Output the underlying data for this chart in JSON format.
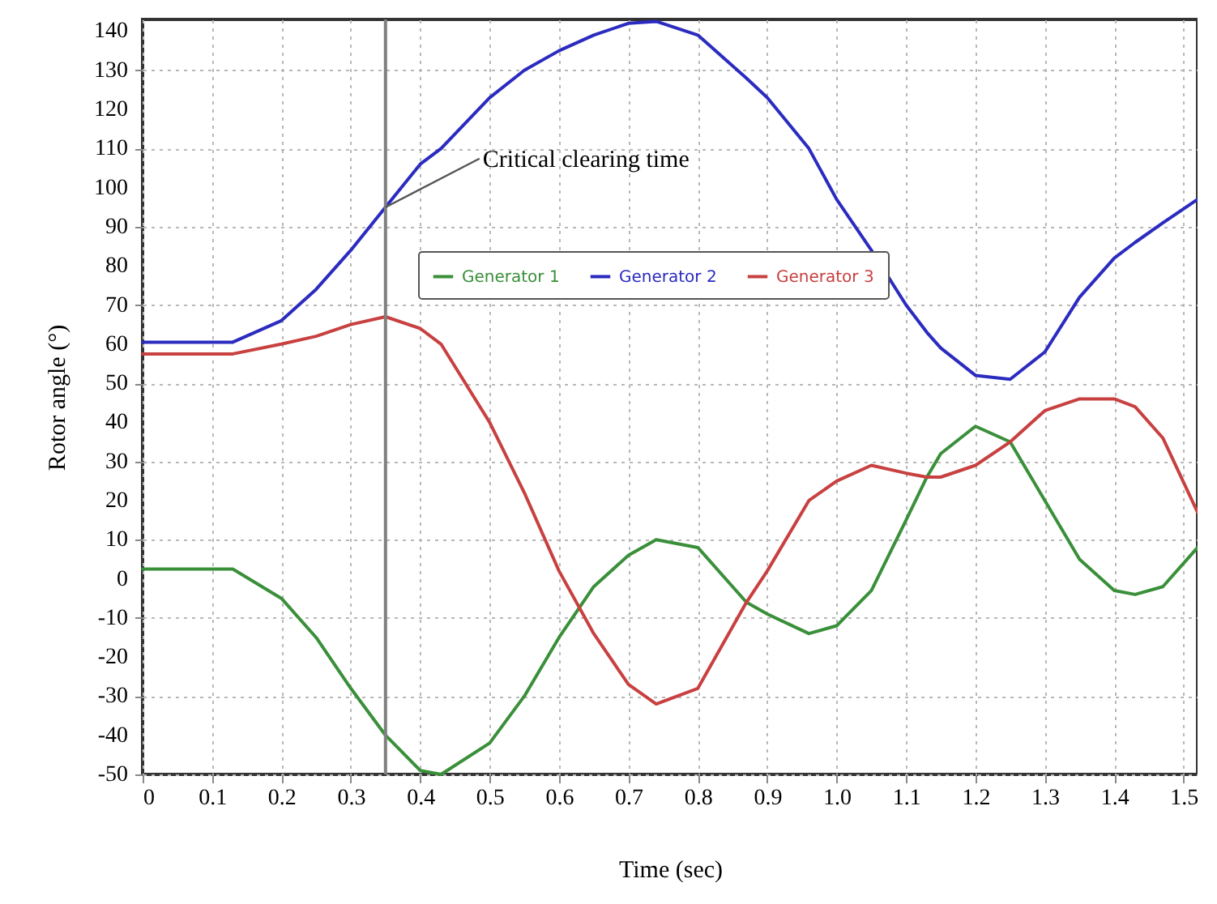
{
  "chart_data": {
    "type": "line",
    "xlabel": "Time (sec)",
    "ylabel": "Rotor angle (°)",
    "xlim": [
      0,
      1.52
    ],
    "ylim": [
      -50,
      143
    ],
    "xticks": [
      0,
      0.1,
      0.2,
      0.3,
      0.4,
      0.5,
      0.6,
      0.7,
      0.8,
      0.9,
      {
        "value": 1,
        "label": "1.0"
      },
      1.1,
      1.2,
      1.3,
      1.4,
      1.5
    ],
    "yticks": [
      -50,
      -40,
      -30,
      -20,
      -10,
      0,
      10,
      20,
      30,
      40,
      50,
      60,
      70,
      80,
      90,
      100,
      110,
      120,
      130,
      140
    ],
    "x": [
      0,
      0.13,
      0.2,
      0.25,
      0.3,
      0.35,
      0.4,
      0.43,
      0.5,
      0.55,
      0.6,
      0.65,
      0.7,
      0.74,
      0.8,
      0.87,
      0.9,
      0.96,
      1.0,
      1.05,
      1.1,
      1.13,
      1.15,
      1.2,
      1.25,
      1.3,
      1.35,
      1.4,
      1.43,
      1.47,
      1.52
    ],
    "series": [
      {
        "name": "Generator 1",
        "color": "#3a8f3a",
        "values": [
          2.5,
          2.5,
          -5,
          -15,
          -28,
          -40,
          -49,
          -50,
          -42,
          -30,
          -15,
          -2,
          6,
          10,
          8,
          -6,
          -9,
          -14,
          -12,
          -3,
          15,
          26,
          32,
          39,
          35,
          20,
          5,
          -3,
          -4,
          -2,
          8
        ]
      },
      {
        "name": "Generator 2",
        "color": "#2b2bc0",
        "values": [
          60.5,
          60.5,
          66,
          74,
          84,
          95,
          106,
          110,
          123,
          130,
          135,
          139,
          142,
          142.5,
          139,
          128,
          123,
          110,
          97,
          84,
          70,
          63,
          59,
          52,
          51,
          58,
          72,
          82,
          86,
          91,
          97
        ]
      },
      {
        "name": "Generator 3",
        "color": "#c84040",
        "values": [
          57.5,
          57.5,
          60,
          62,
          65,
          67,
          64,
          60,
          40,
          22,
          2,
          -14,
          -27,
          -32,
          -28,
          -6,
          2,
          20,
          25,
          29,
          27,
          26,
          26,
          29,
          35,
          43,
          46,
          46,
          44,
          36,
          17
        ]
      }
    ],
    "ref_lines": [
      {
        "axis": "x",
        "value": 0.35,
        "color": "#808080"
      }
    ],
    "annotations": [
      {
        "text": "Critical clearing time",
        "x": 0.35,
        "y": 95
      }
    ],
    "grid": true,
    "legend": "top right",
    "line_style": "solid",
    "marker": "none"
  }
}
